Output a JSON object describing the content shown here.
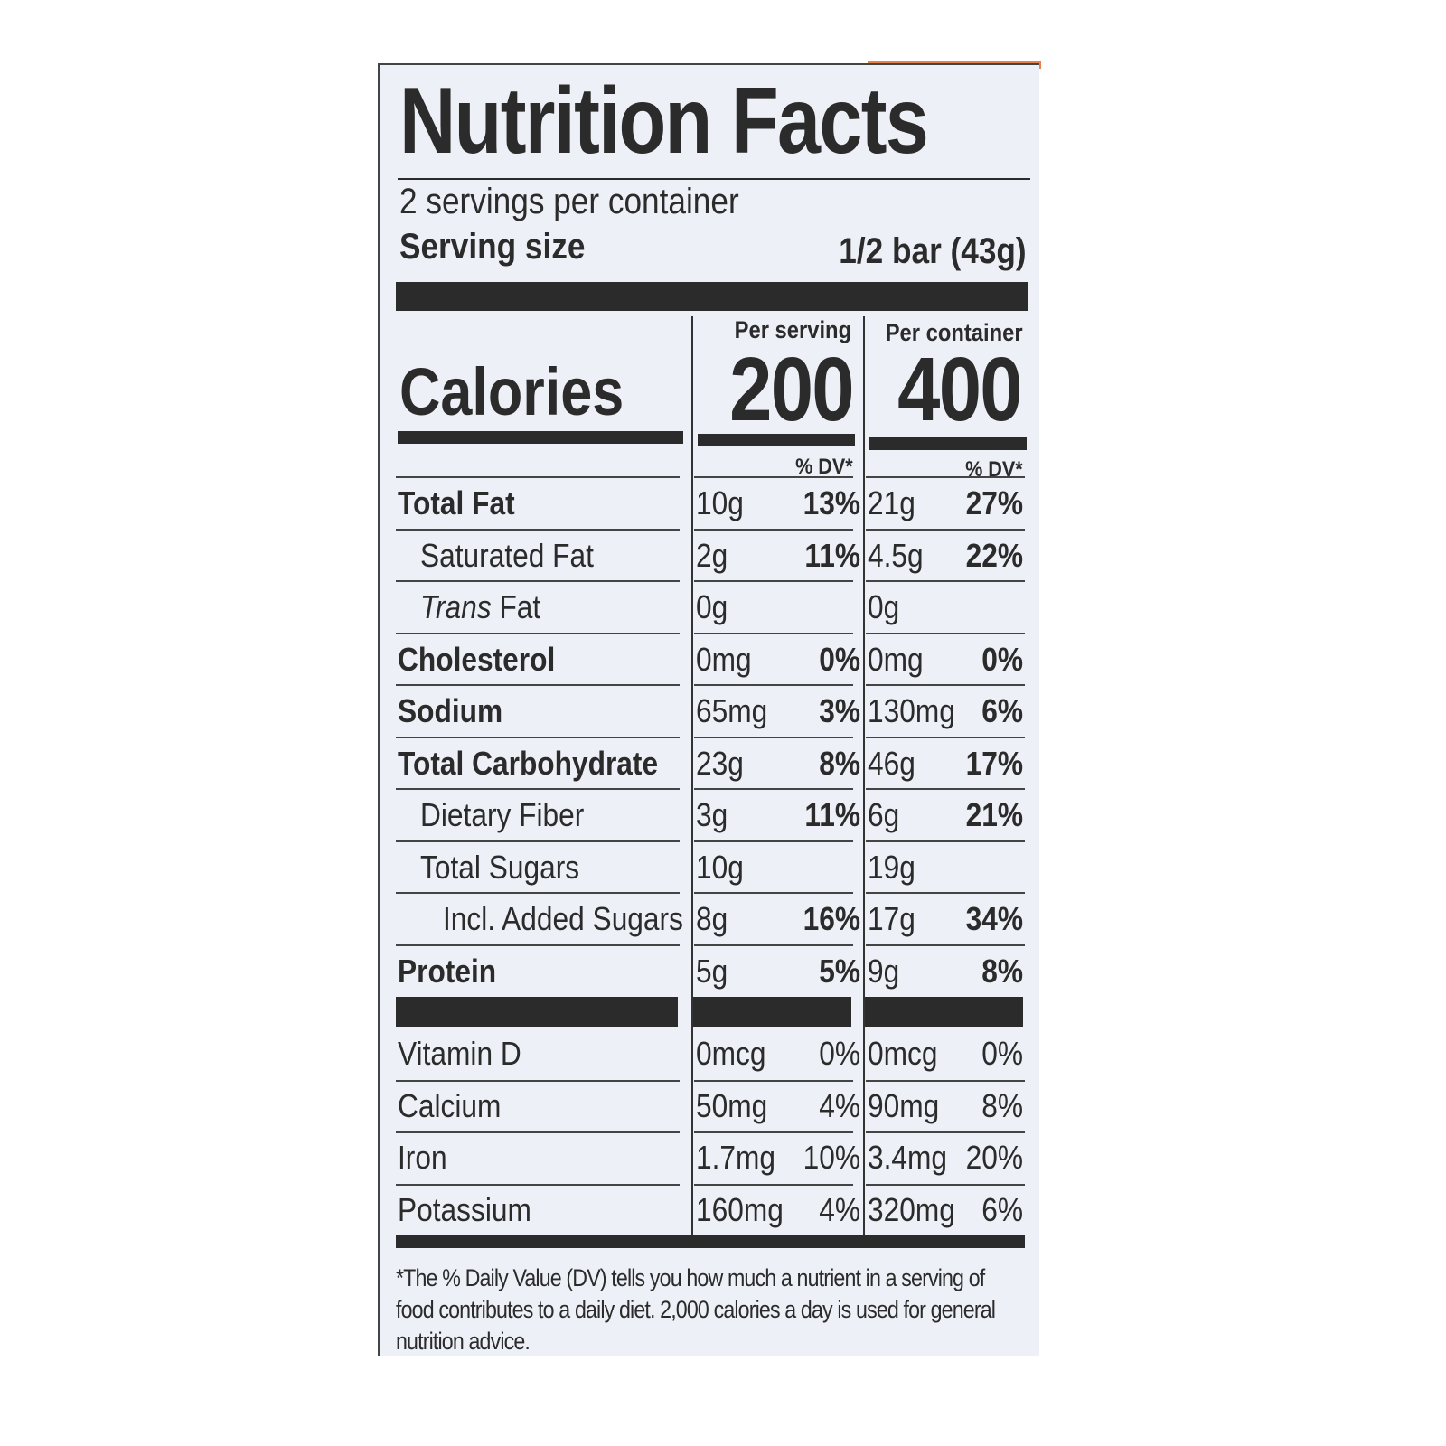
{
  "title": "Nutrition Facts",
  "servings_per_container": "2 servings per container",
  "serving_size_label": "Serving size",
  "serving_size_value": "1/2 bar (43g)",
  "calories_label": "Calories",
  "columns": [
    {
      "header": "Per serving",
      "calories": "200",
      "dv_label": "% DV*"
    },
    {
      "header": "Per container",
      "calories": "400",
      "dv_label": "% DV*"
    }
  ],
  "nutrients": [
    {
      "name": "Total Fat",
      "bold": true,
      "indent": 0,
      "serving": "10g",
      "serving_dv": "13%",
      "container": "21g",
      "container_dv": "27%"
    },
    {
      "name": "Saturated Fat",
      "bold": false,
      "indent": 1,
      "serving": "2g",
      "serving_dv": "11%",
      "container": "4.5g",
      "container_dv": "22%"
    },
    {
      "name": "Trans Fat",
      "bold": false,
      "indent": 1,
      "italic_prefix": true,
      "serving": "0g",
      "serving_dv": "",
      "container": "0g",
      "container_dv": ""
    },
    {
      "name": "Cholesterol",
      "bold": true,
      "indent": 0,
      "serving": "0mg",
      "serving_dv": "0%",
      "container": "0mg",
      "container_dv": "0%"
    },
    {
      "name": "Sodium",
      "bold": true,
      "indent": 0,
      "serving": "65mg",
      "serving_dv": "3%",
      "container": "130mg",
      "container_dv": "6%"
    },
    {
      "name": "Total Carbohydrate",
      "bold": true,
      "indent": 0,
      "serving": "23g",
      "serving_dv": "8%",
      "container": "46g",
      "container_dv": "17%"
    },
    {
      "name": "Dietary Fiber",
      "bold": false,
      "indent": 1,
      "serving": "3g",
      "serving_dv": "11%",
      "container": "6g",
      "container_dv": "21%"
    },
    {
      "name": "Total Sugars",
      "bold": false,
      "indent": 1,
      "serving": "10g",
      "serving_dv": "",
      "container": "19g",
      "container_dv": ""
    },
    {
      "name": "Incl. Added Sugars",
      "bold": false,
      "indent": 2,
      "serving": "8g",
      "serving_dv": "16%",
      "container": "17g",
      "container_dv": "34%"
    },
    {
      "name": "Protein",
      "bold": true,
      "indent": 0,
      "serving": "5g",
      "serving_dv": "5%",
      "container": "9g",
      "container_dv": "8%"
    }
  ],
  "vitamins": [
    {
      "name": "Vitamin D",
      "serving": "0mcg",
      "serving_dv": "0%",
      "container": "0mcg",
      "container_dv": "0%"
    },
    {
      "name": "Calcium",
      "serving": "50mg",
      "serving_dv": "4%",
      "container": "90mg",
      "container_dv": "8%"
    },
    {
      "name": "Iron",
      "serving": "1.7mg",
      "serving_dv": "10%",
      "container": "3.4mg",
      "container_dv": "20%"
    },
    {
      "name": "Potassium",
      "serving": "160mg",
      "serving_dv": "4%",
      "container": "320mg",
      "container_dv": "6%"
    }
  ],
  "footnote": "*The % Daily Value (DV) tells you how much a nutrient in a serving of food contributes to a daily diet. 2,000 calories a day is used for general nutrition advice.",
  "colors": {
    "ink": "#2b2b2b",
    "label_bg": "#eef0f7",
    "packaging_accent": "#e8824a"
  }
}
